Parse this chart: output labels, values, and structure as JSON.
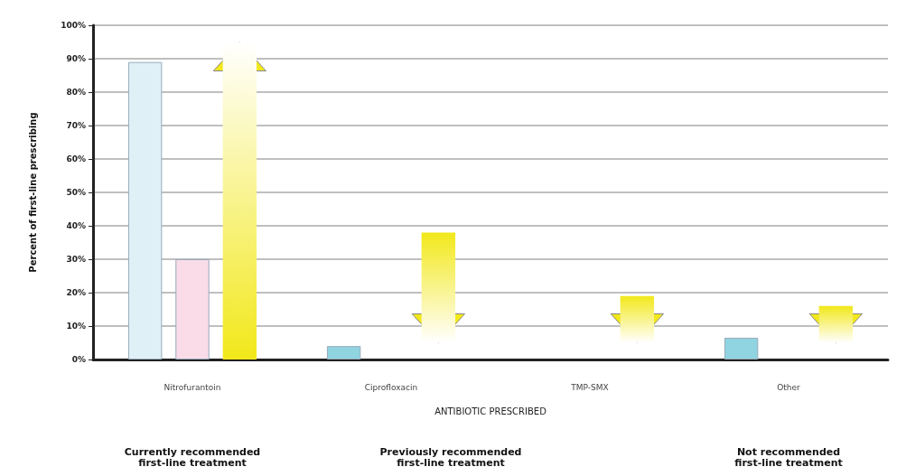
{
  "chart_data": {
    "type": "bar",
    "ylabel": "Percent of first-line prescribing",
    "xlabel": "ANTIBIOTIC PRESCRIBED",
    "categories": [
      "Nitrofurantoin",
      "Ciprofloxacin",
      "TMP-SMX",
      "Other"
    ],
    "series": [
      {
        "colors": [
          "#dff1f6",
          "#8fd4e0",
          null,
          "#8fd4e0"
        ],
        "values": [
          89,
          4,
          null,
          6.5
        ]
      },
      {
        "colors": [
          "#fadce8",
          null,
          null,
          null
        ],
        "values": [
          30,
          null,
          null,
          null
        ]
      },
      {
        "color": "#f2e81a",
        "base": [
          0,
          38,
          19,
          16
        ],
        "values": [
          95,
          -33,
          -14,
          -11
        ]
      }
    ],
    "ylim": [
      0,
      100
    ],
    "yticks": [
      {
        "value": 0,
        "label": "0%"
      },
      {
        "value": 10,
        "label": "10%"
      },
      {
        "value": 20,
        "label": "20%"
      },
      {
        "value": 30,
        "label": "30%"
      },
      {
        "value": 40,
        "label": "40%"
      },
      {
        "value": 50,
        "label": "50%"
      },
      {
        "value": 60,
        "label": "60%"
      },
      {
        "value": 70,
        "label": "70%"
      },
      {
        "value": 80,
        "label": "80%"
      },
      {
        "value": 90,
        "label": "90%"
      },
      {
        "value": 100,
        "label": "100%"
      }
    ],
    "grid": "y",
    "annotations": [
      "Currently recommended\nfirst-line treatment",
      "Previously recommended\nfirst-line treatment",
      "Not recommended\nfirst-line treatment"
    ]
  }
}
